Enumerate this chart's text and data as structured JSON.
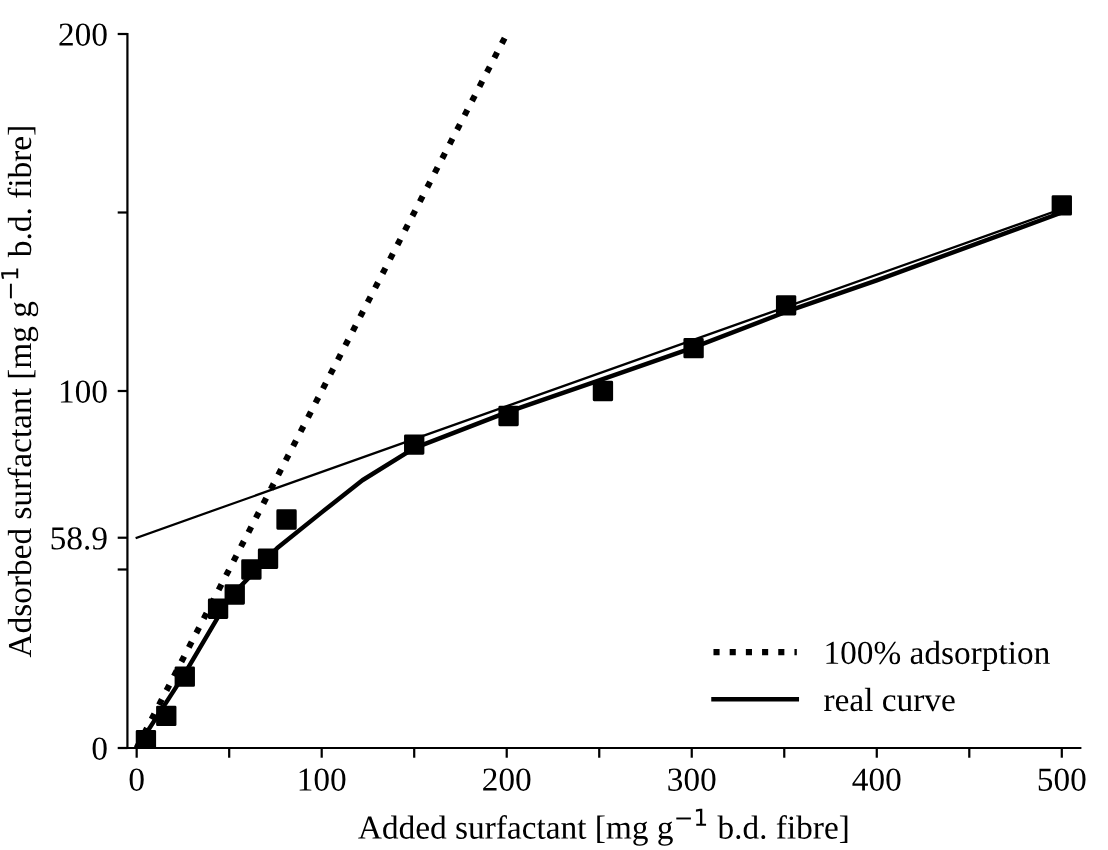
{
  "chart_data": {
    "type": "scatter",
    "xlabel": "Added surfactant [mg g$^{−1}$ b.d. fibre]",
    "ylabel": "Adsorbed surfactant [mg g$^{−1}$ b.d. fibre]",
    "xlim": [
      -5,
      510
    ],
    "ylim": [
      0,
      200
    ],
    "xticks": [
      0,
      {
        "value": 50,
        "label": null
      },
      100,
      {
        "value": 150,
        "label": null
      },
      200,
      {
        "value": 250,
        "label": null
      },
      300,
      {
        "value": 350,
        "label": null
      },
      400,
      {
        "value": 450,
        "label": null
      },
      500
    ],
    "yticks": [
      0,
      {
        "value": 50,
        "label": null
      },
      {
        "value": 58.9,
        "label": "58.9"
      },
      100,
      {
        "value": 150,
        "label": null
      },
      200
    ],
    "grid": false,
    "legend": "bottom right",
    "series": [
      {
        "type": "line",
        "name": "100% adsorption",
        "color": "#000000",
        "line_style": "dotted",
        "marker": "none",
        "x": [
          0,
          200
        ],
        "values": [
          0,
          200
        ]
      },
      {
        "type": "line",
        "name": "real curve",
        "color": "#000000",
        "line_style": "solid",
        "marker": "none",
        "x": [
          0,
          25,
          50,
          76,
          100,
          122,
          150,
          200,
          250,
          300,
          350,
          400,
          500
        ],
        "values": [
          0,
          20,
          42,
          56,
          66,
          75,
          84,
          94,
          103,
          112,
          122,
          131,
          150
        ]
      },
      {
        "type": "line",
        "color": "#000000",
        "line_style": "solid",
        "marker": "none",
        "x": [
          0,
          500
        ],
        "values": [
          58.9,
          151
        ]
      },
      {
        "color": "#000000",
        "marker": "square",
        "x": [
          5,
          16,
          26,
          44,
          53,
          62,
          71,
          81,
          150,
          201,
          252,
          301,
          351,
          500
        ],
        "values": [
          2.2,
          9,
          20,
          39,
          43,
          50,
          53,
          64,
          85,
          93,
          100,
          112,
          124,
          152
        ]
      }
    ]
  }
}
